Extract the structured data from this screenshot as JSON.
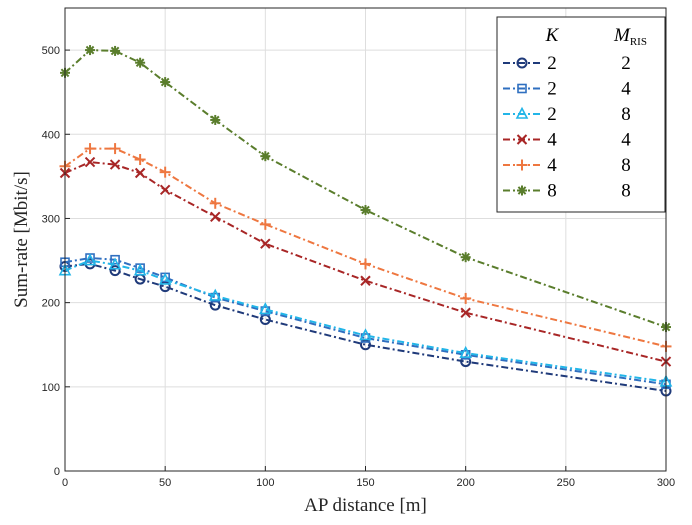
{
  "chart_data": {
    "type": "line",
    "xlabel": "AP distance [m]",
    "ylabel": "Sum-rate [Mbit/s]",
    "xlim": [
      0,
      300
    ],
    "ylim": [
      0,
      550
    ],
    "xticks": [
      0,
      50,
      100,
      150,
      200,
      250,
      300
    ],
    "yticks": [
      0,
      100,
      200,
      300,
      400,
      500
    ],
    "grid": true,
    "legend_position": "top-right",
    "legend_header": {
      "k": "K",
      "m": "M",
      "m_sub": "RIS"
    },
    "series": [
      {
        "k": "2",
        "m": "2",
        "color": "#1f3a7a",
        "marker": "circle",
        "dash": "dashdot",
        "x": [
          0,
          12.5,
          25,
          37.5,
          50,
          75,
          100,
          150,
          200,
          300
        ],
        "values": [
          243,
          246,
          238,
          228,
          219,
          197,
          180,
          150,
          130,
          95
        ]
      },
      {
        "k": "2",
        "m": "4",
        "color": "#2f6fc0",
        "marker": "square",
        "dash": "dashdot",
        "x": [
          0,
          12.5,
          25,
          37.5,
          50,
          75,
          100,
          150,
          200,
          300
        ],
        "values": [
          248,
          253,
          251,
          241,
          230,
          206,
          190,
          158,
          138,
          103
        ]
      },
      {
        "k": "2",
        "m": "8",
        "color": "#22b5e8",
        "marker": "triangle",
        "dash": "dashdot",
        "x": [
          0,
          12.5,
          25,
          37.5,
          50,
          75,
          100,
          150,
          200,
          300
        ],
        "values": [
          238,
          250,
          245,
          238,
          227,
          208,
          192,
          161,
          140,
          106
        ]
      },
      {
        "k": "4",
        "m": "4",
        "color": "#a82626",
        "marker": "x",
        "dash": "dashdot",
        "x": [
          0,
          12.5,
          25,
          37.5,
          50,
          75,
          100,
          150,
          200,
          300
        ],
        "values": [
          354,
          367,
          364,
          354,
          334,
          302,
          270,
          226,
          188,
          130
        ]
      },
      {
        "k": "4",
        "m": "8",
        "color": "#ee7740",
        "marker": "plus",
        "dash": "dashdot",
        "x": [
          0,
          12.5,
          25,
          37.5,
          50,
          75,
          100,
          150,
          200,
          300
        ],
        "values": [
          362,
          383,
          383,
          370,
          355,
          318,
          293,
          246,
          205,
          148
        ]
      },
      {
        "k": "8",
        "m": "8",
        "color": "#5a7d2c",
        "marker": "asterisk",
        "dash": "dashdot",
        "x": [
          0,
          12.5,
          25,
          37.5,
          50,
          75,
          100,
          150,
          200,
          300
        ],
        "values": [
          473,
          500,
          499,
          485,
          462,
          417,
          374,
          310,
          254,
          171
        ]
      }
    ]
  }
}
